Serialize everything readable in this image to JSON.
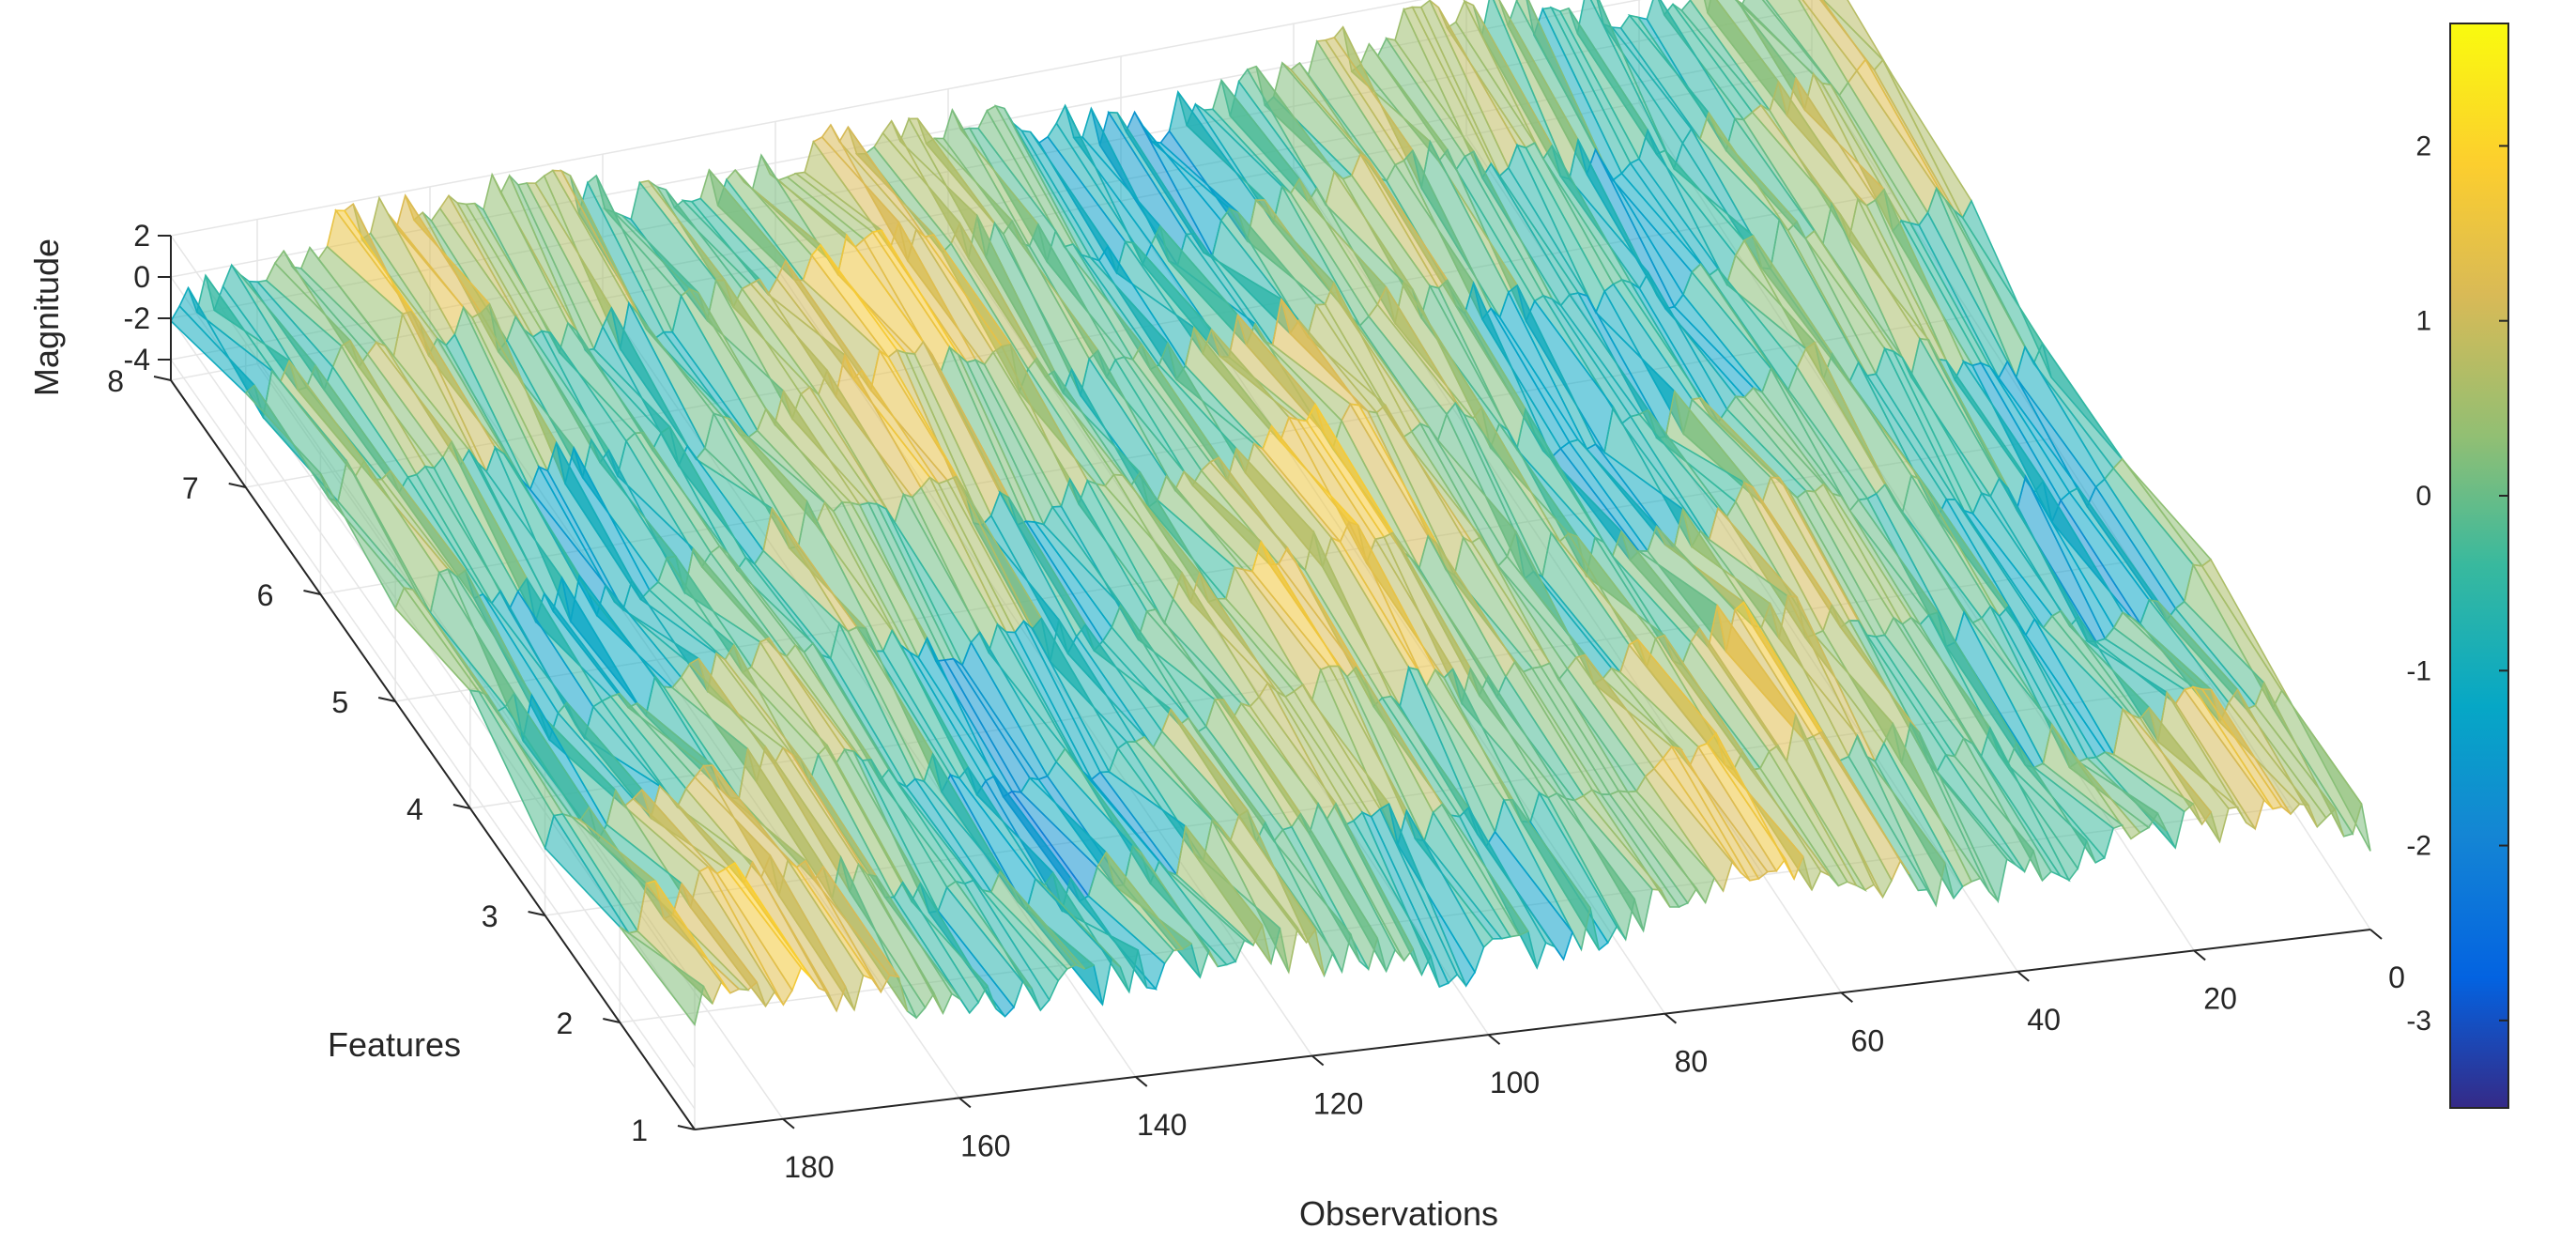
{
  "chart_data": {
    "type": "surface",
    "xlabel": "Observations",
    "ylabel": "Features",
    "zlabel": "Magnitude",
    "x_ticks": [
      0,
      20,
      40,
      60,
      80,
      100,
      120,
      140,
      160,
      180
    ],
    "y_ticks": [
      1,
      2,
      3,
      4,
      5,
      6,
      7,
      8
    ],
    "z_ticks": [
      2,
      0,
      -2,
      -4
    ],
    "xlim": [
      0,
      190
    ],
    "ylim": [
      1,
      8
    ],
    "zlim": [
      -5,
      2
    ],
    "colorbar": {
      "colormap": "parula",
      "ticks": [
        2,
        1,
        0,
        -1,
        -2,
        -3
      ],
      "limits": [
        -3.5,
        2.7
      ]
    },
    "grid": true,
    "series_summary": {
      "n_observations": 190,
      "n_features": 8,
      "value_range": [
        -3.4,
        2.6
      ]
    }
  }
}
